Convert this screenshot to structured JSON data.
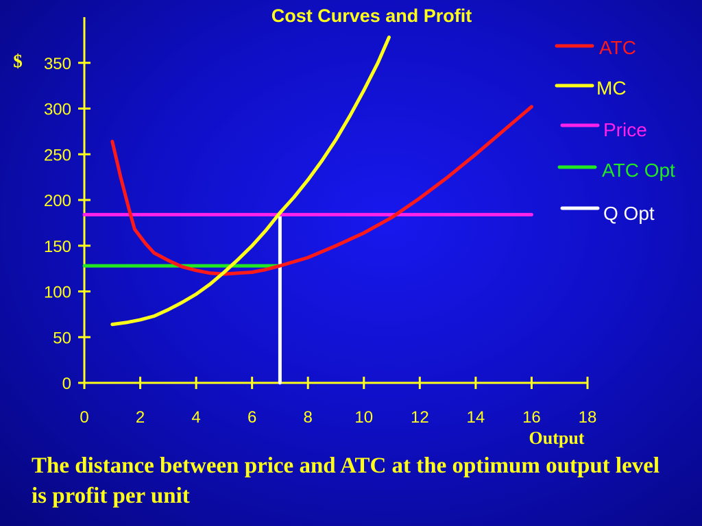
{
  "slide": {
    "caption": "The distance between price and ATC at the optimum output level is profit per unit"
  },
  "chart_data": {
    "type": "line",
    "title": "Cost Curves and Profit",
    "ylabel": "$",
    "xlabel": "Output",
    "xlim": [
      0,
      18
    ],
    "ylim": [
      0,
      390
    ],
    "xticks": [
      0,
      2,
      4,
      6,
      8,
      10,
      12,
      14,
      16,
      18
    ],
    "yticks": [
      0,
      50,
      100,
      150,
      200,
      250,
      300,
      350
    ],
    "grid": false,
    "legend_position": "right",
    "series": [
      {
        "name": "ATC",
        "color": "#ff1a1a",
        "points": [
          [
            1,
            264
          ],
          [
            1.3,
            225
          ],
          [
            1.6,
            190
          ],
          [
            1.8,
            168
          ],
          [
            2.2,
            152
          ],
          [
            2.5,
            142
          ],
          [
            3,
            134
          ],
          [
            3.5,
            127
          ],
          [
            4,
            123
          ],
          [
            4.5,
            120
          ],
          [
            5,
            119
          ],
          [
            5.5,
            120
          ],
          [
            6,
            121
          ],
          [
            6.5,
            124
          ],
          [
            7,
            128
          ],
          [
            8,
            137
          ],
          [
            9,
            150
          ],
          [
            10,
            164
          ],
          [
            11,
            181
          ],
          [
            12,
            202
          ],
          [
            13,
            225
          ],
          [
            14,
            250
          ],
          [
            15,
            276
          ],
          [
            16,
            302
          ]
        ]
      },
      {
        "name": "MC",
        "color": "#ffff1a",
        "points": [
          [
            1,
            64
          ],
          [
            1.5,
            66
          ],
          [
            2,
            69
          ],
          [
            2.5,
            73
          ],
          [
            3,
            80
          ],
          [
            3.5,
            88
          ],
          [
            4,
            97
          ],
          [
            4.5,
            108
          ],
          [
            5,
            121
          ],
          [
            5.5,
            135
          ],
          [
            6,
            150
          ],
          [
            6.5,
            167
          ],
          [
            7,
            186
          ],
          [
            7.5,
            203
          ],
          [
            8,
            222
          ],
          [
            8.5,
            243
          ],
          [
            9,
            266
          ],
          [
            9.5,
            292
          ],
          [
            10,
            320
          ],
          [
            10.5,
            350
          ],
          [
            10.9,
            378
          ]
        ]
      },
      {
        "name": "Price",
        "color": "#ff22e8",
        "points": [
          [
            0,
            184
          ],
          [
            16,
            184
          ]
        ]
      },
      {
        "name": "ATC Opt",
        "color": "#22e822",
        "points": [
          [
            0,
            128
          ],
          [
            7,
            128
          ]
        ]
      },
      {
        "name": "Q Opt",
        "color": "#ffffff",
        "points": [
          [
            7,
            0
          ],
          [
            7,
            184
          ]
        ]
      }
    ]
  }
}
